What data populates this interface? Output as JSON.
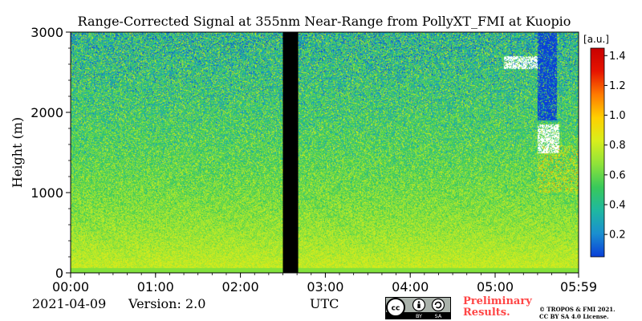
{
  "chart_data": {
    "type": "heatmap",
    "title": "Range-Corrected Signal at 355nm Near-Range from PollyXT_FMI at Kuopio",
    "xlabel": "UTC",
    "ylabel": "Height (m)",
    "x_ticks": [
      "00:00",
      "01:00",
      "02:00",
      "03:00",
      "04:00",
      "05:00",
      "05:59"
    ],
    "x_tick_hours": [
      0,
      1,
      2,
      3,
      4,
      5,
      5.983
    ],
    "xlim_hours": [
      0,
      5.983
    ],
    "y_ticks": [
      0,
      1000,
      2000,
      3000
    ],
    "ylim": [
      0,
      3000
    ],
    "colorbar": {
      "label": "[a.u.]",
      "ticks": [
        0.2,
        0.4,
        0.6,
        0.8,
        1.0,
        1.2,
        1.4
      ],
      "tick_labels": [
        "0.2",
        "0.4",
        "0.6",
        "0.8",
        "1.0",
        "1.2",
        "1.4"
      ],
      "range": [
        0.05,
        1.45
      ],
      "colormap": [
        "#0a3fd8",
        "#1a8fd0",
        "#1fb8a0",
        "#38c95a",
        "#8fe33a",
        "#d8ee1c",
        "#ffd000",
        "#ff7a00",
        "#e61400",
        "#c80000"
      ]
    },
    "missing_data": [
      {
        "start_hours": 2.5,
        "end_hours": 2.68,
        "color": "#000000"
      }
    ],
    "features": [
      {
        "type": "cloud",
        "start_hours": 5.1,
        "end_hours": 5.5,
        "height_m": [
          2550,
          2700
        ]
      },
      {
        "type": "cloud",
        "start_hours": 5.5,
        "end_hours": 5.75,
        "height_m": [
          1500,
          1850
        ]
      }
    ]
  },
  "footer": {
    "date": "2021-04-09",
    "version": "Version: 2.0",
    "preliminary_line1": "Preliminary",
    "preliminary_line2": "Results.",
    "copyright_line1": "© TROPOS & FMI 2021.",
    "copyright_line2": "CC BY SA 4.0 License."
  },
  "license_badge": {
    "cc": "cc",
    "by": "BY",
    "sa": "SA"
  }
}
